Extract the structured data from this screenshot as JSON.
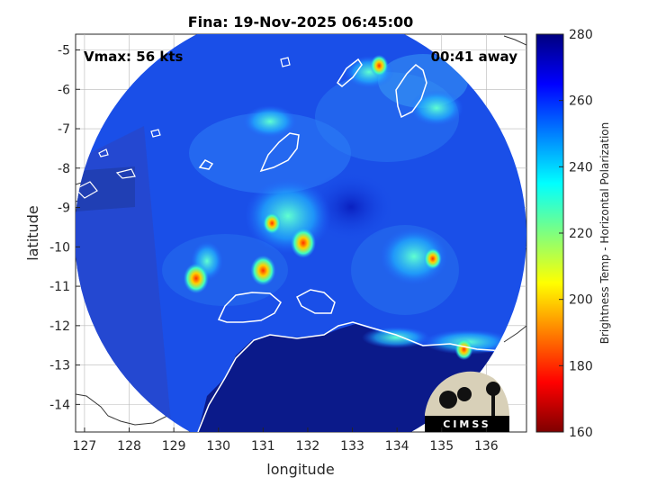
{
  "chart_data": {
    "type": "heatmap",
    "title": "Fina: 19-Nov-2025 06:45:00",
    "xlabel": "longitude",
    "ylabel": "latitude",
    "xlim": [
      126.8,
      136.9
    ],
    "ylim": [
      -14.7,
      -4.6
    ],
    "x_ticks": [
      "127",
      "128",
      "129",
      "130",
      "131",
      "132",
      "133",
      "134",
      "135",
      "136"
    ],
    "y_ticks": [
      "-5",
      "-6",
      "-7",
      "-8",
      "-9",
      "-10",
      "-11",
      "-12",
      "-13",
      "-14"
    ],
    "grid": true,
    "annotations": {
      "vmax": "Vmax: 56 kts",
      "time_away": "00:41 away"
    },
    "colorbar": {
      "label": "Brightness Temp - Horizontal Polarization",
      "range": [
        160,
        280
      ],
      "ticks": [
        "280",
        "260",
        "240",
        "220",
        "200",
        "180",
        "160"
      ],
      "colormap": "jet"
    },
    "storm_center": {
      "lon": 131.9,
      "lat": -9.9
    },
    "cold_cores": [
      {
        "lon": 131.9,
        "lat": -9.9,
        "value": 185
      },
      {
        "lon": 131.2,
        "lat": -9.4,
        "value": 205
      },
      {
        "lon": 129.5,
        "lat": -10.8,
        "value": 185
      },
      {
        "lon": 134.8,
        "lat": -10.3,
        "value": 200
      },
      {
        "lon": 131.0,
        "lat": -10.6,
        "value": 190
      },
      {
        "lon": 133.6,
        "lat": -5.4,
        "value": 205
      },
      {
        "lon": 135.5,
        "lat": -12.6,
        "value": 210
      }
    ],
    "logo": "CIMSS"
  }
}
